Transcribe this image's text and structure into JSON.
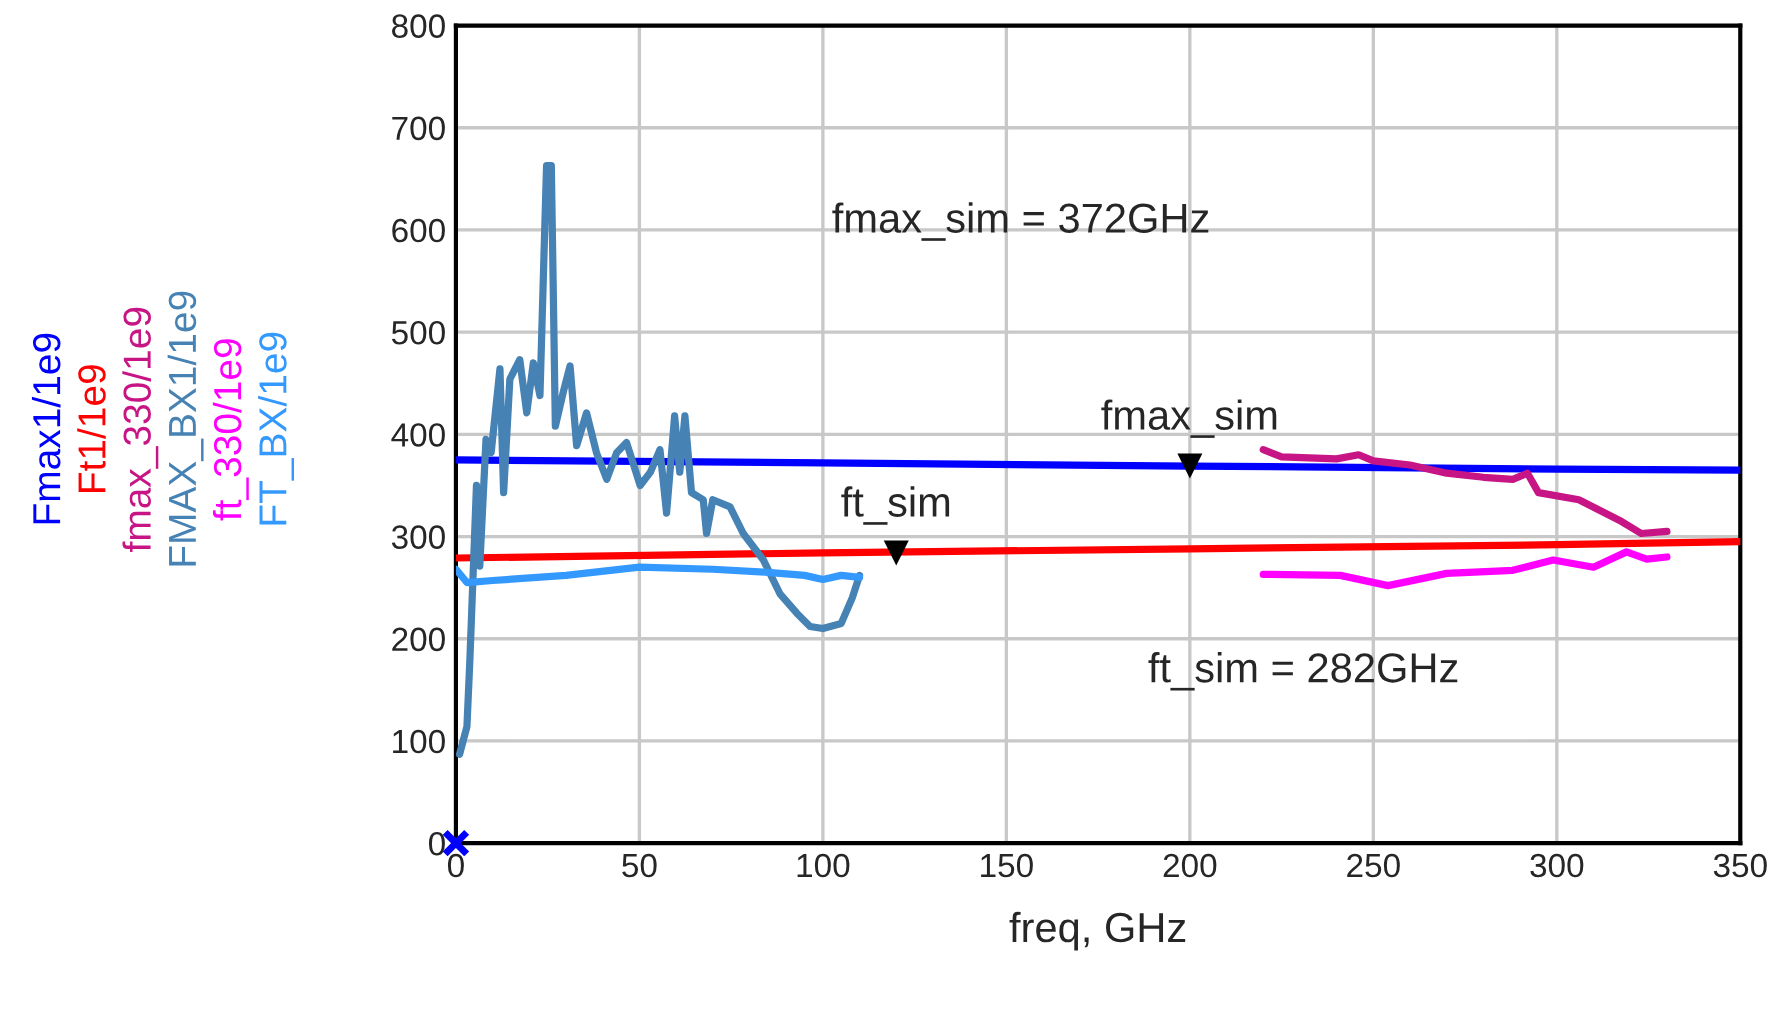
{
  "chart_data": {
    "type": "line",
    "xlabel": "freq, GHz",
    "xlim": [
      0,
      350
    ],
    "xticks": [
      0,
      50,
      100,
      150,
      200,
      250,
      300,
      350
    ],
    "ylim": [
      0,
      800
    ],
    "yticks": [
      0,
      100,
      200,
      300,
      400,
      500,
      600,
      700,
      800
    ],
    "grid": true,
    "legend": "left",
    "marker": "none",
    "line_style": "solid",
    "series": [
      {
        "name": "Fmax1/1e9",
        "color": "#0000ff",
        "x": [
          0,
          100,
          200,
          300,
          350
        ],
        "values": [
          375,
          372,
          369,
          366,
          365
        ]
      },
      {
        "name": "Ft1/1e9",
        "color": "#ff0000",
        "x": [
          0,
          100,
          200,
          300,
          350
        ],
        "values": [
          279,
          284,
          288,
          292,
          295
        ]
      },
      {
        "name": "fmax_330/1e9",
        "color": "#c71585",
        "x": [
          220,
          225,
          240,
          246,
          250,
          260,
          270,
          280,
          288,
          292,
          295,
          306,
          317,
          323,
          330
        ],
        "values": [
          385,
          378,
          376,
          380,
          374,
          370,
          362,
          358,
          356,
          362,
          343,
          336,
          316,
          303,
          305
        ]
      },
      {
        "name": "FMAX_BX1/1e9",
        "color": "#4682b4",
        "x": [
          1,
          3,
          3.8,
          5.6,
          6.5,
          8.2,
          9.6,
          12,
          13,
          14.7,
          17.4,
          19.3,
          21.1,
          22.9,
          24.7,
          26,
          27.1,
          29.3,
          31.1,
          32.9,
          35.6,
          38.3,
          41.1,
          43.8,
          46.5,
          50.2,
          53,
          55.6,
          57.4,
          59.6,
          61,
          62.4,
          64.2,
          67.4,
          68.3,
          70,
          74.7,
          78.3,
          83.8,
          88.3,
          92.9,
          96.5,
          100,
          105,
          108,
          110
        ],
        "values": [
          87,
          114,
          179,
          350,
          271,
          395,
          382,
          464,
          343,
          454,
          473,
          421,
          470,
          438,
          663,
          663,
          408,
          442,
          467,
          389,
          421,
          382,
          356,
          382,
          392,
          350,
          363,
          385,
          323,
          418,
          363,
          418,
          343,
          336,
          303,
          336,
          329,
          303,
          277,
          244,
          225,
          212,
          210,
          215,
          240,
          262
        ]
      },
      {
        "name": "ft_330/1e9",
        "color": "#ff00ff",
        "x": [
          220,
          241,
          254,
          270,
          288,
          299,
          310,
          319,
          324.5,
          330
        ],
        "values": [
          263,
          262,
          252,
          264,
          267,
          277,
          270,
          285,
          278,
          280
        ]
      },
      {
        "name": "FT_BX/1e9",
        "color": "#3399ff",
        "x": [
          0,
          3,
          10,
          30,
          50,
          70,
          85,
          95,
          100,
          105,
          110
        ],
        "values": [
          268,
          255,
          257,
          262,
          270,
          268,
          265,
          262,
          258,
          262,
          260
        ]
      },
      {
        "type": "scatter",
        "marker": "cross",
        "color": "#0000ff",
        "x": [
          0
        ],
        "values": [
          0
        ]
      }
    ],
    "annotations": [
      "fmax_sim = 372GHz",
      "ft_sim = 282GHz",
      {
        "text": "fmax_sim",
        "x": 200,
        "y": 369
      },
      {
        "text": "ft_sim",
        "x": 120,
        "y": 284
      }
    ]
  }
}
